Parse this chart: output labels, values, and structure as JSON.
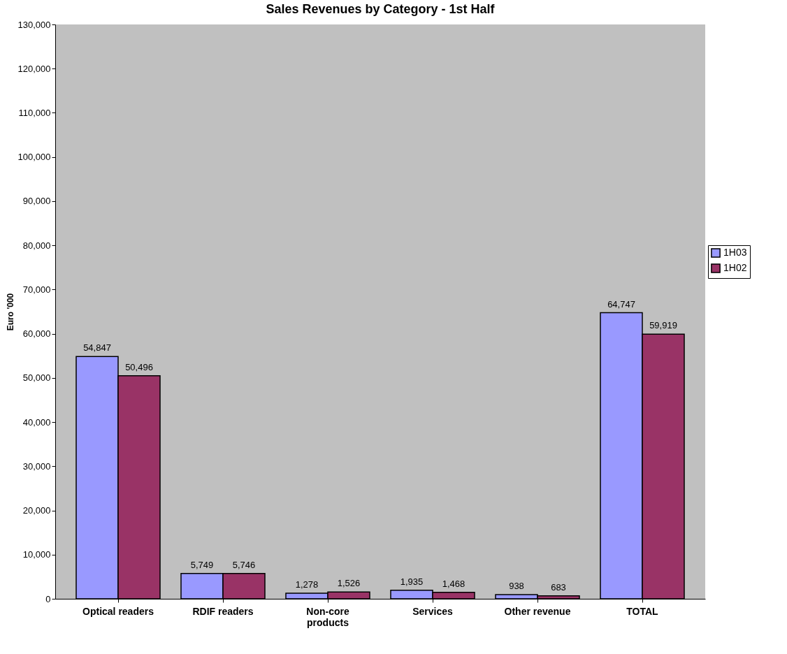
{
  "chart_data": {
    "type": "bar",
    "title": "Sales Revenues by Category - 1st Half",
    "ylabel": "Euro '000",
    "categories": [
      "Optical readers",
      "RDIF readers",
      "Non-core products",
      "Services",
      "Other revenue",
      "TOTAL"
    ],
    "series": [
      {
        "name": "1H03",
        "color": "#9999ff",
        "values": [
          54847,
          5749,
          1278,
          1935,
          938,
          64747
        ],
        "value_labels": [
          "54,847",
          "5,749",
          "1,278",
          "1,935",
          "938",
          "64,747"
        ]
      },
      {
        "name": "1H02",
        "color": "#993366",
        "values": [
          50496,
          5746,
          1526,
          1468,
          683,
          59919
        ],
        "value_labels": [
          "50,496",
          "5,746",
          "1,526",
          "1,468",
          "683",
          "59,919"
        ]
      }
    ],
    "ylim": [
      0,
      130000
    ],
    "yticks": [
      0,
      {
        "value": 10000,
        "label": "10,000"
      },
      {
        "value": 20000,
        "label": "20,000"
      },
      {
        "value": 30000,
        "label": "30,000"
      },
      {
        "value": 40000,
        "label": "40,000"
      },
      {
        "value": 50000,
        "label": "50,000"
      },
      {
        "value": 60000,
        "label": "60,000"
      },
      {
        "value": 70000,
        "label": "70,000"
      },
      {
        "value": 80000,
        "label": "80,000"
      },
      {
        "value": 90000,
        "label": "90,000"
      },
      {
        "value": 100000,
        "label": "100,000"
      },
      {
        "value": 110000,
        "label": "110,000"
      },
      {
        "value": 120000,
        "label": "120,000"
      },
      {
        "value": 130000,
        "label": "130,000"
      }
    ],
    "grid": false,
    "legend": "right"
  }
}
